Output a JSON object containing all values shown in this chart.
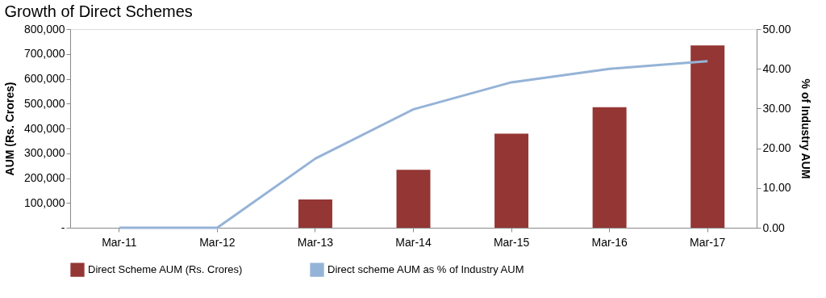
{
  "chart_data": {
    "type": "bar",
    "title": "Growth of Direct Schemes",
    "categories": [
      "Mar-11",
      "Mar-12",
      "Mar-13",
      "Mar-14",
      "Mar-15",
      "Mar-16",
      "Mar-17"
    ],
    "series": [
      {
        "name": "Direct Scheme AUM (Rs. Crores)",
        "color": "#943634",
        "values": [
          null,
          null,
          114000,
          233000,
          379000,
          485000,
          734000
        ]
      },
      {
        "name": "Direct scheme AUM as % of Industry AUM",
        "type": "line",
        "axis": "y2",
        "color": "#95b3d7",
        "values": [
          0,
          0,
          17.4,
          29.8,
          36.6,
          40.0,
          41.9
        ]
      }
    ],
    "ylabel": "AUM (Rs. Crores)",
    "y2label": "% of Industry AUM",
    "ylim": [
      0,
      800000
    ],
    "yticks": [
      {
        "value": 0,
        "label": "-"
      },
      {
        "value": 100000,
        "label": "100,000"
      },
      {
        "value": 200000,
        "label": "200,000"
      },
      {
        "value": 300000,
        "label": "300,000"
      },
      {
        "value": 400000,
        "label": "400,000"
      },
      {
        "value": 500000,
        "label": "500,000"
      },
      {
        "value": 600000,
        "label": "600,000"
      },
      {
        "value": 700000,
        "label": "700,000"
      },
      {
        "value": 800000,
        "label": "800,000"
      }
    ],
    "y2lim": [
      0,
      50
    ],
    "y2ticks": [
      {
        "value": 0,
        "label": "0.00"
      },
      {
        "value": 10,
        "label": "10.00"
      },
      {
        "value": 20,
        "label": "20.00"
      },
      {
        "value": 30,
        "label": "30.00"
      },
      {
        "value": 40,
        "label": "40.00"
      },
      {
        "value": 50,
        "label": "50.00"
      }
    ],
    "grid": false,
    "legend": "bottom"
  }
}
